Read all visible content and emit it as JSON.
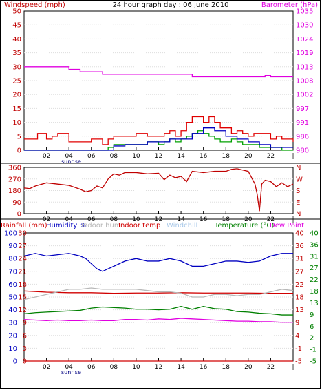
{
  "chart_data": [
    {
      "panel": "wind",
      "type": "line",
      "title": "24 hour graph day : 06 June 2010",
      "left_axis_label": "Windspeed (mph)",
      "right_axis_label": "Barometer (hPa)",
      "left_ticks": [
        "0",
        "5",
        "10",
        "15",
        "20",
        "25",
        "30",
        "35",
        "40",
        "45",
        "50"
      ],
      "left_ylim": [
        0,
        50
      ],
      "right_ticks": [
        "980",
        "986",
        "991",
        "997",
        "1002",
        "1008",
        "1013",
        "1019",
        "1024",
        "1030",
        "1035"
      ],
      "right_ylim": [
        980,
        1035
      ],
      "x_tick_labels": [
        "02",
        "04",
        "06",
        "08",
        "10",
        "12",
        "14",
        "16",
        "18",
        "20",
        "22"
      ],
      "x_range_hours": [
        0,
        24
      ],
      "marker_label": "sunrise",
      "series": [
        {
          "role": "windgust",
          "color": "#e00000",
          "x": [
            0,
            1,
            1.2,
            2,
            2.5,
            3,
            4,
            5,
            6,
            7,
            7.5,
            8,
            9,
            10,
            11,
            12,
            12.5,
            13,
            13.5,
            14,
            14.5,
            15,
            15.5,
            16,
            16.5,
            17,
            17.5,
            18,
            18.5,
            19,
            19.5,
            20,
            20.5,
            21,
            21.5,
            22,
            22.5,
            23,
            24
          ],
          "y": [
            4,
            4,
            6,
            4,
            5,
            6,
            3,
            3,
            4,
            2,
            4,
            5,
            5,
            6,
            5,
            5,
            6,
            7,
            5,
            7,
            10,
            12,
            12,
            10,
            12,
            10,
            8,
            8,
            6,
            7,
            6,
            5,
            6,
            6,
            6,
            4,
            5,
            4,
            3
          ]
        },
        {
          "role": "windspeed",
          "color": "#00a000",
          "x": [
            0,
            6,
            7,
            7.5,
            8,
            9,
            10,
            11,
            12,
            12.5,
            13,
            13.5,
            14,
            14.5,
            15,
            15.5,
            16,
            16.5,
            17,
            17.5,
            18,
            18.5,
            19,
            19.5,
            20,
            21,
            22,
            23,
            24
          ],
          "y": [
            0,
            0,
            0,
            1,
            2,
            2,
            2,
            3,
            2,
            3,
            4,
            3,
            4,
            5,
            6,
            7,
            6,
            5,
            4,
            3,
            3,
            4,
            3,
            2,
            2,
            1,
            1,
            0,
            0
          ]
        },
        {
          "role": "windavg",
          "color": "#0000c0",
          "x": [
            0,
            7,
            8,
            9,
            10,
            11,
            12,
            13,
            14,
            15,
            16,
            17,
            18,
            19,
            20,
            21,
            22,
            23,
            24
          ],
          "y": [
            0,
            0,
            1.5,
            2,
            2,
            3,
            3,
            4,
            4,
            6,
            8,
            7,
            5,
            4,
            3,
            2,
            1,
            1,
            1
          ]
        },
        {
          "role": "barometer",
          "color": "#e000e0",
          "x": [
            0,
            2,
            4,
            5,
            6,
            7,
            8,
            10,
            12,
            14,
            15,
            16,
            17,
            18,
            19,
            20,
            21,
            21.5,
            22,
            23,
            24
          ],
          "y": [
            1013,
            1013,
            1012,
            1011,
            1011,
            1010,
            1010,
            1010,
            1010,
            1010,
            1009,
            1009,
            1009,
            1009,
            1009,
            1009,
            1009,
            1009.5,
            1009,
            1009,
            1009
          ]
        }
      ]
    },
    {
      "panel": "wind_direction",
      "type": "line",
      "left_ticks": [
        "0",
        "90",
        "180",
        "270",
        "360"
      ],
      "left_ylim": [
        0,
        360
      ],
      "right_ticks": [
        "N",
        "E",
        "S",
        "W",
        "N"
      ],
      "x_tick_labels": [
        "02",
        "04",
        "06",
        "08",
        "10",
        "12",
        "14",
        "16",
        "18",
        "20",
        "22"
      ],
      "series": [
        {
          "role": "direction",
          "color": "#c00000",
          "x": [
            0,
            0.5,
            1,
            2,
            3,
            4,
            5,
            5.5,
            6,
            6.5,
            7,
            7.5,
            8,
            8.5,
            9,
            10,
            11,
            12,
            12.5,
            13,
            13.5,
            14,
            14.5,
            15,
            16,
            17,
            18,
            18.5,
            19,
            19.5,
            20,
            20.3,
            20.6,
            20.8,
            21,
            21.2,
            21.5,
            22,
            22.5,
            23,
            23.5,
            24
          ],
          "y": [
            200,
            195,
            215,
            240,
            230,
            220,
            190,
            170,
            180,
            215,
            200,
            270,
            310,
            300,
            320,
            320,
            310,
            315,
            265,
            300,
            280,
            290,
            250,
            330,
            320,
            330,
            330,
            345,
            350,
            340,
            330,
            280,
            230,
            150,
            20,
            230,
            260,
            250,
            210,
            240,
            210,
            230
          ]
        }
      ]
    },
    {
      "panel": "temperature_humidity",
      "type": "line",
      "legend": [
        {
          "text": "Rainfall (mm)",
          "color": "#d00000"
        },
        {
          "text": "Humidity %",
          "color": "#0000c0"
        },
        {
          "text": "Indoor hum",
          "color": "#b8b8b8"
        },
        {
          "text": "Indoor temp",
          "color": "#d00000"
        },
        {
          "text": "Windchill",
          "color": "#a8c8e8"
        },
        {
          "text": "Temperature (°C)",
          "color": "#008000"
        },
        {
          "text": "Dew Point",
          "color": "#e000e0"
        }
      ],
      "axis_rain_ticks": [
        "0",
        "3",
        "6",
        "9",
        "12",
        "15",
        "18",
        "21",
        "24",
        "27",
        "30"
      ],
      "axis_hum_ticks": [
        "0",
        "10",
        "20",
        "30",
        "40",
        "50",
        "60",
        "70",
        "80",
        "90",
        "100"
      ],
      "axis_temp_ticks_r1": [
        "-5",
        "-1",
        "4",
        "9",
        "13",
        "18",
        "22",
        "27",
        "31",
        "36",
        "40"
      ],
      "axis_temp_ticks_r2": [
        "-5",
        "-1",
        "2",
        "6",
        "9",
        "13",
        "18",
        "22",
        "27",
        "31",
        "36",
        "40"
      ],
      "x_tick_labels": [
        "02",
        "04",
        "06",
        "08",
        "10",
        "12",
        "14",
        "16",
        "18",
        "20",
        "22"
      ],
      "marker_label": "sunrise",
      "series": [
        {
          "role": "humidity",
          "color": "#0000c0",
          "x": [
            0,
            1,
            2,
            3,
            4,
            5,
            5.5,
            6,
            6.5,
            7,
            7.5,
            8,
            9,
            10,
            11,
            12,
            13,
            14,
            15,
            16,
            17,
            18,
            19,
            20,
            21,
            22,
            23,
            24
          ],
          "y": [
            82,
            84,
            82,
            83,
            84,
            82,
            80,
            76,
            72,
            70,
            72,
            74,
            78,
            80,
            78,
            78,
            80,
            78,
            74,
            74,
            76,
            78,
            78,
            77,
            78,
            82,
            84,
            84
          ]
        },
        {
          "role": "indoor_temp",
          "color": "#d00000",
          "x": [
            0,
            2,
            4,
            6,
            8,
            10,
            12,
            14,
            16,
            18,
            20,
            22,
            24
          ],
          "y": [
            19.6,
            19.2,
            19,
            19,
            18.8,
            18.9,
            18.9,
            19,
            18.9,
            18.9,
            18.9,
            18.8,
            18.8
          ]
        },
        {
          "role": "indoor_hum",
          "color": "#b8b8b8",
          "x": [
            0,
            1,
            2,
            3,
            4,
            5,
            6,
            7,
            8,
            9,
            10,
            11,
            12,
            13,
            14,
            15,
            16,
            17,
            18,
            19,
            20,
            21,
            22,
            23,
            24
          ],
          "y": [
            48,
            50,
            52,
            54,
            56,
            56,
            57,
            56,
            56,
            56,
            56,
            55,
            54,
            54,
            53,
            50,
            50,
            52,
            52,
            51,
            52,
            52,
            54,
            56,
            55
          ]
        },
        {
          "role": "temperature",
          "color": "#008000",
          "x": [
            0,
            1,
            2,
            3,
            4,
            5,
            6,
            7,
            8,
            9,
            10,
            11,
            12,
            13,
            14,
            15,
            16,
            17,
            18,
            19,
            20,
            21,
            22,
            23,
            24
          ],
          "y": [
            11.6,
            12,
            12.2,
            12.4,
            12.6,
            12.8,
            13.6,
            14,
            13.8,
            13.6,
            13.2,
            13.2,
            13,
            13.2,
            14.2,
            13.2,
            14.2,
            13.4,
            13.2,
            12.4,
            12.2,
            11.8,
            11.6,
            11.2,
            11.2
          ]
        },
        {
          "role": "dew_point",
          "color": "#e000e0",
          "x": [
            0,
            1,
            2,
            3,
            4,
            5,
            6,
            7,
            8,
            9,
            10,
            11,
            12,
            13,
            14,
            15,
            16,
            17,
            18,
            19,
            20,
            21,
            22,
            23,
            24
          ],
          "y": [
            9.6,
            9.4,
            9.2,
            9.4,
            9.2,
            9.2,
            9.4,
            9.2,
            9.2,
            9.6,
            9.6,
            9.4,
            9.8,
            9.6,
            10,
            9.8,
            9.6,
            9.4,
            9.2,
            9,
            9,
            8.8,
            8.8,
            8.6,
            8.6
          ]
        },
        {
          "role": "rainfall",
          "color": "#d00000",
          "x": [
            0,
            24
          ],
          "y": [
            0,
            0
          ]
        }
      ]
    }
  ]
}
